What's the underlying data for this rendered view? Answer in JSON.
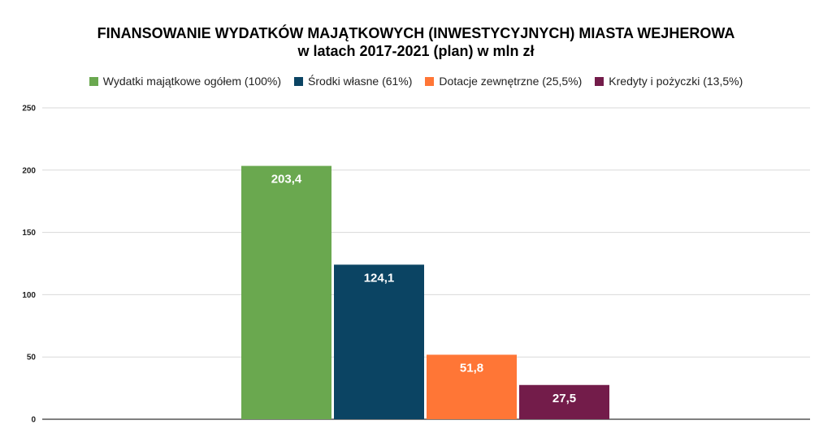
{
  "chart_data": {
    "type": "bar",
    "title_line1": "FINANSOWANIE WYDATKÓW MAJĄTKOWYCH (INWESTYCYJNYCH) MIASTA WEJHEROWA",
    "title_line2": "w latach 2017-2021 (plan) w mln zł",
    "xlabel": "",
    "ylabel": "",
    "ylim": [
      0,
      250
    ],
    "yticks": [
      "0",
      "50",
      "100",
      "150",
      "200",
      "250"
    ],
    "grid": true,
    "legend_position": "top",
    "series": [
      {
        "name": "Wydatki majątkowe ogółem (100%)",
        "value": 203.4,
        "label": "203,4",
        "color": "#6aa84f"
      },
      {
        "name": "Środki własne (61%)",
        "value": 124.1,
        "label": "124,1",
        "color": "#0b4463"
      },
      {
        "name": "Dotacje zewnętrzne (25,5%)",
        "value": 51.8,
        "label": "51,8",
        "color": "#ff7636"
      },
      {
        "name": "Kredyty i pożyczki (13,5%)",
        "value": 27.5,
        "label": "27,5",
        "color": "#731c4a"
      }
    ]
  }
}
